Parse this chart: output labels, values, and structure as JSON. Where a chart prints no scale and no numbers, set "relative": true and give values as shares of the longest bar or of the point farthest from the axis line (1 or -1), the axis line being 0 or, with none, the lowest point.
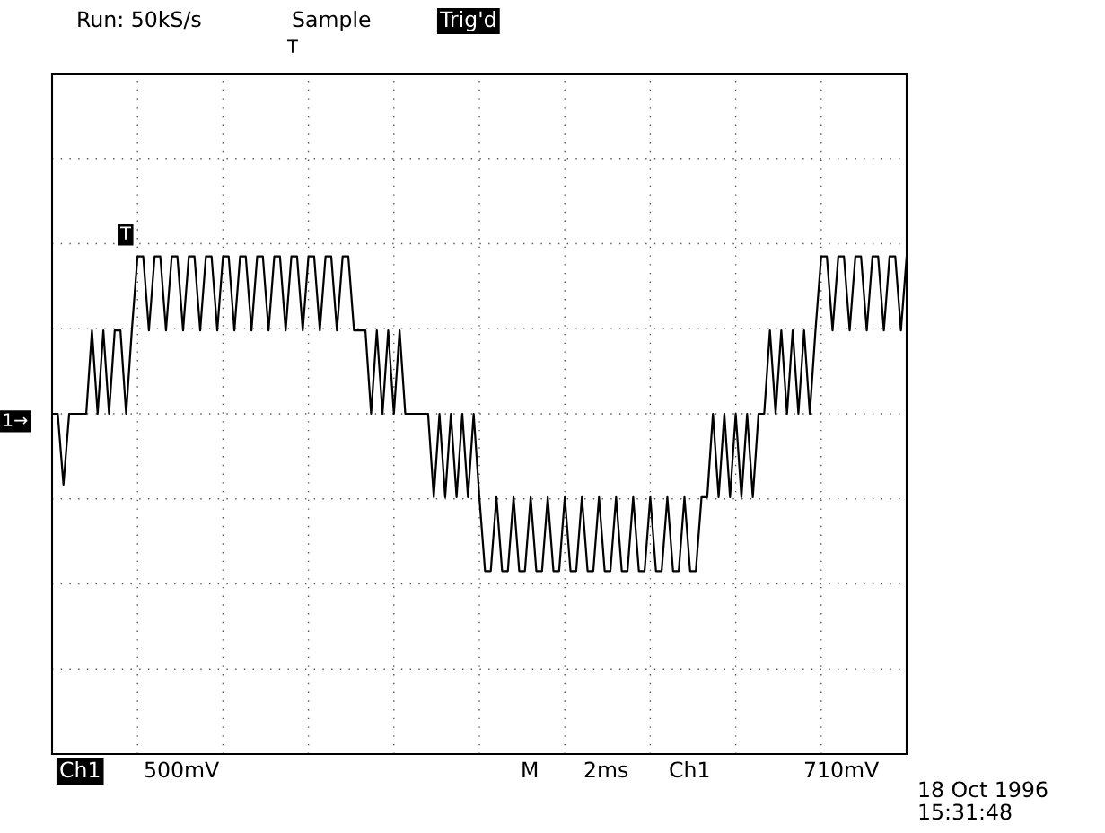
{
  "chart_data": {
    "type": "line",
    "relative": true,
    "annotations": [
      "Run: 50kS/s",
      "Sample",
      "Trig'd",
      "T",
      "T",
      "1→",
      "Ch1",
      "500mV",
      "M",
      "2ms",
      "Ch1",
      "710mV",
      "18 Oct 1996",
      "15:31:48"
    ],
    "categories": [
      null,
      null,
      null,
      null,
      null,
      null,
      null,
      null,
      null,
      null,
      null,
      null,
      null,
      null,
      null,
      null,
      null,
      null,
      null,
      null,
      null,
      null,
      null,
      null,
      null,
      null,
      null,
      null,
      null,
      null,
      null,
      null,
      null,
      null,
      null,
      null,
      null,
      null,
      null,
      null,
      null,
      null,
      null,
      null,
      null,
      null,
      null,
      null,
      null,
      null,
      null,
      null,
      null,
      null,
      null,
      null,
      null,
      null,
      null,
      null,
      null,
      null,
      null,
      null,
      null,
      null,
      null,
      null,
      null,
      null,
      null,
      null,
      null,
      null,
      null,
      null,
      null,
      null,
      null,
      null,
      null,
      null,
      null,
      null,
      null,
      null,
      null,
      null,
      null,
      null,
      null,
      null,
      null,
      null,
      null,
      null,
      null,
      null,
      null,
      null,
      null,
      null,
      null,
      null,
      null,
      null,
      null,
      null,
      null,
      null,
      null,
      null,
      null,
      null,
      null,
      null,
      null,
      null,
      null,
      null,
      null,
      null,
      null,
      null,
      null,
      null,
      null,
      null,
      null,
      null,
      null,
      null,
      null,
      null,
      null,
      null,
      null,
      null,
      null,
      null,
      null,
      null,
      null,
      null,
      null,
      null,
      null,
      null,
      null,
      null,
      null
    ],
    "grid": true,
    "line_style": "solid",
    "marker": "none",
    "series": [
      {
        "color": "#000000",
        "values": [
          0,
          0,
          -0.45,
          0,
          0,
          0,
          0,
          0.53,
          0,
          0.53,
          0,
          0.53,
          0.53,
          0,
          0.53,
          1,
          1,
          0.53,
          1,
          1,
          0.53,
          1,
          1,
          0.53,
          1,
          1,
          0.53,
          1,
          1,
          0.53,
          1,
          1,
          0.53,
          1,
          1,
          0.53,
          1,
          1,
          0.53,
          1,
          1,
          0.53,
          1,
          1,
          0.53,
          1,
          1,
          0.53,
          1,
          1,
          0.53,
          1,
          1,
          0.53,
          0.53,
          0.53,
          0,
          0.53,
          0,
          0.53,
          0,
          0.53,
          0,
          0,
          0,
          0,
          0,
          -0.53,
          0,
          -0.53,
          0,
          -0.53,
          0,
          -0.53,
          0,
          -0.53,
          -1,
          -1,
          -0.53,
          -1,
          -1,
          -0.53,
          -1,
          -1,
          -0.53,
          -1,
          -1,
          -0.53,
          -1,
          -1,
          -0.53,
          -1,
          -1,
          -0.53,
          -1,
          -1,
          -0.53,
          -1,
          -1,
          -0.53,
          -1,
          -1,
          -0.53,
          -1,
          -1,
          -0.53,
          -1,
          -1,
          -0.53,
          -1,
          -1,
          -0.53,
          -1,
          -1,
          -0.53,
          -0.53,
          0,
          -0.53,
          0,
          -0.53,
          0,
          -0.53,
          0,
          -0.53,
          0,
          0,
          0.53,
          0,
          0.53,
          0,
          0.53,
          0,
          0.53,
          0,
          0.53,
          1,
          1,
          0.53,
          1,
          1,
          0.53,
          1,
          1,
          0.53,
          1,
          1,
          0.53,
          1,
          1,
          0.53,
          1
        ]
      }
    ]
  }
}
